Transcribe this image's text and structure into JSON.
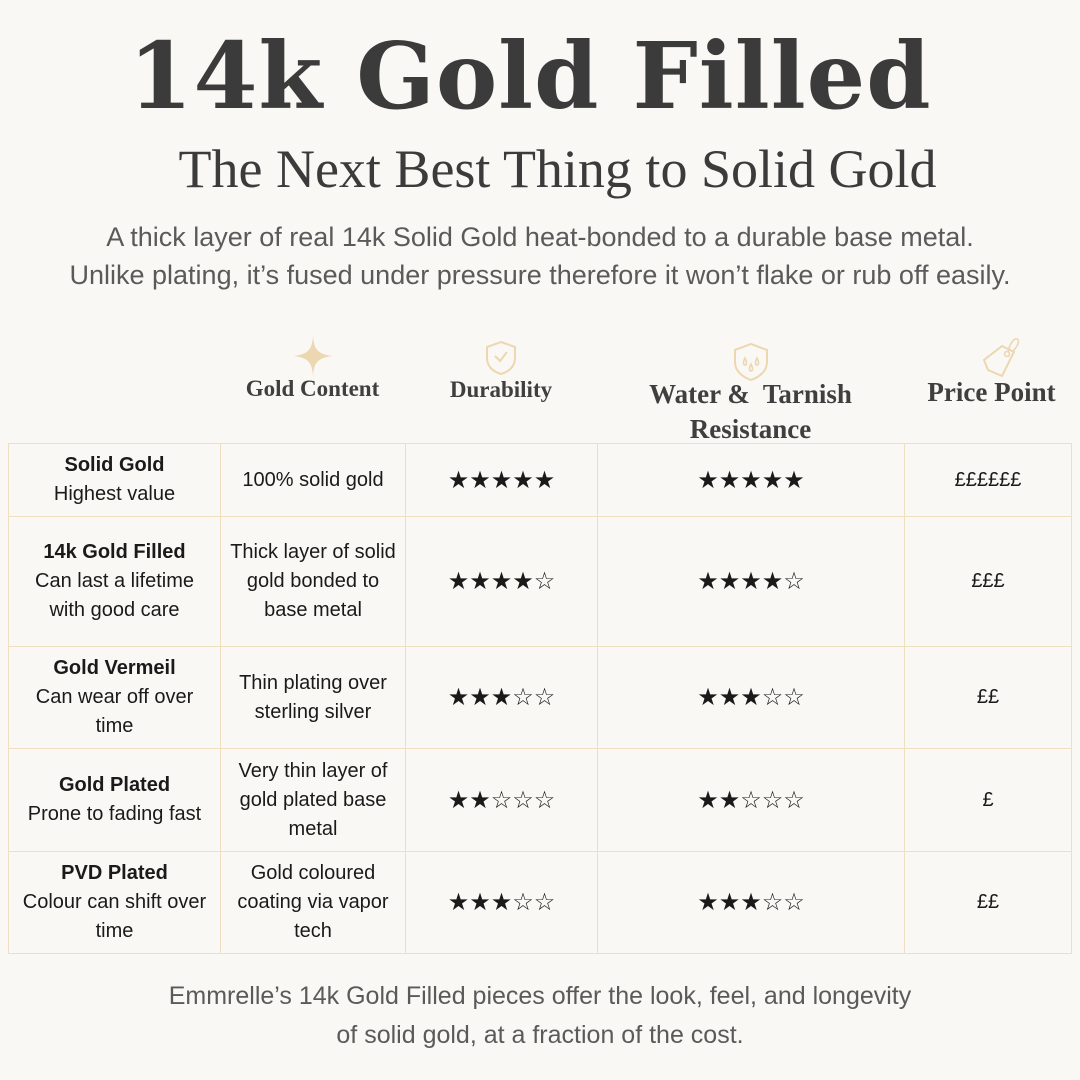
{
  "title": "14k Gold Filled",
  "subtitle": "The Next Best Thing to Solid Gold",
  "intro": [
    "A thick layer of real 14k Solid Gold heat-bonded to a durable base metal.",
    "Unlike plating, it’s fused under pressure therefore it won’t flake or rub off easily."
  ],
  "accent_color": "#ecd7b0",
  "border_color": "#efdfc0",
  "columns": [
    {
      "label": "Gold Content",
      "icon": "sparkle-icon"
    },
    {
      "label": "Durability",
      "icon": "shield-check-icon"
    },
    {
      "label": "Water &  Tarnish",
      "label2": "Resistance",
      "icon": "shield-drops-icon"
    },
    {
      "label": "Price Point",
      "icon": "price-tag-icon"
    }
  ],
  "rows": [
    {
      "name": "Solid Gold",
      "desc": "Highest value",
      "content": "100% solid gold",
      "durability": "★★★★★",
      "water": "★★★★★",
      "price": "££££££"
    },
    {
      "name": "14k Gold Filled",
      "desc": "Can last a lifetime with good care",
      "content": "Thick layer of solid gold bonded to base metal",
      "durability": "★★★★☆",
      "water": "★★★★☆",
      "price": "£££"
    },
    {
      "name": "Gold Vermeil",
      "desc": "Can wear off over time",
      "content": "Thin plating over sterling silver",
      "durability": "★★★☆☆",
      "water": "★★★☆☆",
      "price": "££"
    },
    {
      "name": "Gold Plated",
      "desc": "Prone to fading fast",
      "content": "Very thin layer of gold plated base metal",
      "durability": "★★☆☆☆",
      "water": "★★☆☆☆",
      "price": "£"
    },
    {
      "name": "PVD Plated",
      "desc": "Colour can shift over time",
      "content": "Gold coloured coating via vapor tech",
      "durability": "★★★☆☆",
      "water": "★★★☆☆",
      "price": "££"
    }
  ],
  "footer": [
    "Emmrelle’s 14k Gold Filled pieces offer the look, feel, and longevity",
    "of solid gold, at a fraction of the cost."
  ]
}
